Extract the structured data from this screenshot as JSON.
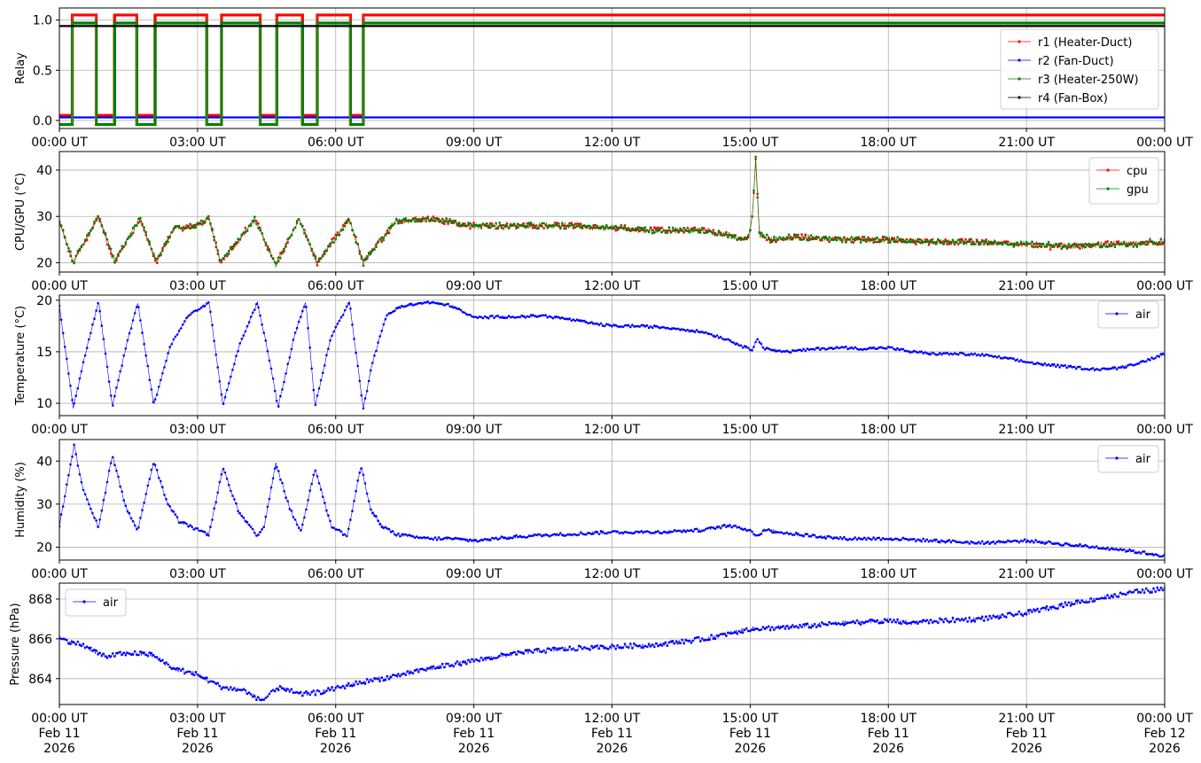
{
  "chart_data": [
    {
      "type": "line",
      "ylabel": "Relay",
      "ylim": [
        -0.08,
        1.12
      ],
      "yticks": [
        0.0,
        0.5,
        1.0
      ],
      "ytick_labels": [
        "0.0",
        "0.5",
        "1.0"
      ],
      "xlim": [
        "00:00 UT",
        "24:00 UT"
      ],
      "xtick_labels": [
        "00:00 UT",
        "03:00 UT",
        "06:00 UT",
        "09:00 UT",
        "12:00 UT",
        "15:00 UT",
        "18:00 UT",
        "21:00 UT",
        "00:00 UT"
      ],
      "grid": true,
      "legend": "top-right",
      "series": [
        {
          "name": "r1 (Heater-Duct)",
          "color": "#ff0000",
          "on_level": 1.05,
          "off_level": 0.05,
          "off_intervals_h": [
            [
              0.0,
              0.28
            ],
            [
              0.78,
              1.17
            ],
            [
              1.67,
              2.05
            ],
            [
              3.2,
              3.5
            ],
            [
              4.35,
              4.7
            ],
            [
              5.25,
              5.6
            ],
            [
              6.3,
              6.6
            ]
          ]
        },
        {
          "name": "r2 (Fan-Duct)",
          "color": "#0000ff",
          "constant": 0.03
        },
        {
          "name": "r3 (Heater-250W)",
          "color": "#008000",
          "on_level": 0.97,
          "off_level": -0.04,
          "off_intervals_h": [
            [
              0.0,
              0.28
            ],
            [
              0.78,
              1.17
            ],
            [
              1.67,
              2.05
            ],
            [
              3.2,
              3.5
            ],
            [
              4.35,
              4.7
            ],
            [
              5.25,
              5.6
            ],
            [
              6.3,
              6.6
            ]
          ]
        },
        {
          "name": "r4 (Fan-Box)",
          "color": "#000000",
          "constant": 0.94
        }
      ]
    },
    {
      "type": "line",
      "ylabel": "CPU/GPU (°C)",
      "ylim": [
        18,
        44
      ],
      "yticks": [
        20,
        30,
        40
      ],
      "ytick_labels": [
        "20",
        "30",
        "40"
      ],
      "xlim": [
        "00:00 UT",
        "24:00 UT"
      ],
      "xtick_labels": [
        "00:00 UT",
        "03:00 UT",
        "06:00 UT",
        "09:00 UT",
        "12:00 UT",
        "15:00 UT",
        "18:00 UT",
        "21:00 UT",
        "00:00 UT"
      ],
      "grid": true,
      "legend": "top-right",
      "series": [
        {
          "name": "cpu",
          "color": "#ff0000",
          "x_h": [
            0,
            0.3,
            0.85,
            1.2,
            1.75,
            2.1,
            2.5,
            3.0,
            3.25,
            3.5,
            4.25,
            4.7,
            5.2,
            5.6,
            6.3,
            6.6,
            7.3,
            8.0,
            9.0,
            10.0,
            11.0,
            12.0,
            13.0,
            14.0,
            14.5,
            14.95,
            15.05,
            15.12,
            15.2,
            15.5,
            16.0,
            17.0,
            18.0,
            19.0,
            20.0,
            21.0,
            22.0,
            23.0,
            24.0
          ],
          "y": [
            29,
            20,
            30,
            20,
            29.5,
            20,
            27.5,
            28,
            29.5,
            20,
            29.5,
            19.5,
            29.5,
            20,
            29.5,
            20,
            29,
            29.5,
            28,
            28,
            28,
            27.5,
            27,
            27,
            26,
            25,
            30,
            42.5,
            26,
            25,
            25.5,
            25,
            25,
            24.5,
            24.5,
            24,
            23.5,
            24,
            24.5
          ]
        },
        {
          "name": "gpu",
          "color": "#008000",
          "x_h": [
            0,
            0.3,
            0.85,
            1.2,
            1.75,
            2.1,
            2.5,
            3.0,
            3.25,
            3.5,
            4.25,
            4.7,
            5.2,
            5.6,
            6.3,
            6.6,
            7.3,
            8.0,
            9.0,
            10.0,
            11.0,
            12.0,
            13.0,
            14.0,
            14.5,
            14.95,
            15.05,
            15.12,
            15.2,
            15.5,
            16.0,
            17.0,
            18.0,
            19.0,
            20.0,
            21.0,
            22.0,
            23.0,
            24.0
          ],
          "y": [
            29,
            20,
            30,
            20.5,
            29.5,
            20.5,
            27.5,
            28,
            29.5,
            20,
            29.5,
            19.5,
            29.5,
            20,
            29.5,
            20,
            29,
            29.5,
            28,
            28,
            28,
            27.5,
            27,
            27,
            26,
            25,
            30,
            43,
            26,
            25,
            25.5,
            25,
            25,
            24.5,
            24.5,
            24,
            23.5,
            24,
            24.5
          ]
        }
      ]
    },
    {
      "type": "line",
      "ylabel": "Temperature (°C)",
      "ylim": [
        8.8,
        20.5
      ],
      "yticks": [
        10,
        15,
        20
      ],
      "ytick_labels": [
        "10",
        "15",
        "20"
      ],
      "xlim": [
        "00:00 UT",
        "24:00 UT"
      ],
      "xtick_labels": [
        "00:00 UT",
        "03:00 UT",
        "06:00 UT",
        "09:00 UT",
        "12:00 UT",
        "15:00 UT",
        "18:00 UT",
        "21:00 UT",
        "00:00 UT"
      ],
      "grid": true,
      "legend": "top-right",
      "series": [
        {
          "name": "air",
          "color": "#0000ff",
          "x_h": [
            0,
            0.3,
            0.55,
            0.85,
            1.15,
            1.45,
            1.7,
            2.05,
            2.4,
            2.8,
            3.25,
            3.55,
            3.9,
            4.3,
            4.55,
            4.75,
            5.1,
            5.35,
            5.55,
            5.9,
            6.3,
            6.6,
            6.8,
            7.1,
            7.4,
            8.0,
            8.5,
            9.0,
            9.5,
            10.0,
            10.5,
            11.0,
            11.5,
            12.0,
            12.5,
            13.0,
            13.5,
            14.0,
            14.5,
            14.9,
            15.05,
            15.15,
            15.3,
            15.8,
            16.5,
            17.0,
            17.5,
            18.0,
            18.5,
            19.0,
            19.5,
            20.0,
            20.5,
            21.0,
            21.5,
            22.0,
            22.5,
            23.0,
            23.5,
            24.0
          ],
          "y": [
            19.5,
            9.6,
            14.5,
            19.9,
            9.7,
            15.5,
            19.8,
            9.8,
            15.5,
            18.5,
            19.8,
            9.8,
            15.5,
            19.8,
            14.5,
            9.6,
            16.5,
            19.9,
            9.7,
            16.5,
            19.8,
            9.5,
            14.0,
            18.5,
            19.4,
            19.8,
            19.5,
            18.3,
            18.4,
            18.4,
            18.5,
            18.2,
            17.8,
            17.5,
            17.5,
            17.4,
            17.2,
            16.9,
            16.2,
            15.4,
            15.2,
            16.4,
            15.3,
            15.0,
            15.3,
            15.4,
            15.3,
            15.4,
            15.0,
            14.8,
            14.8,
            14.7,
            14.4,
            14.0,
            13.7,
            13.5,
            13.3,
            13.4,
            14.0,
            14.8
          ]
        }
      ]
    },
    {
      "type": "line",
      "ylabel": "Humidity (%)",
      "ylim": [
        17,
        45
      ],
      "yticks": [
        20,
        30,
        40
      ],
      "ytick_labels": [
        "20",
        "30",
        "40"
      ],
      "xlim": [
        "00:00 UT",
        "24:00 UT"
      ],
      "xtick_labels": [
        "00:00 UT",
        "03:00 UT",
        "06:00 UT",
        "09:00 UT",
        "12:00 UT",
        "15:00 UT",
        "18:00 UT",
        "21:00 UT",
        "00:00 UT"
      ],
      "grid": true,
      "legend": "top-right",
      "series": [
        {
          "name": "air",
          "color": "#0000ff",
          "x_h": [
            0,
            0.32,
            0.5,
            0.85,
            1.15,
            1.45,
            1.7,
            2.05,
            2.35,
            2.6,
            3.0,
            3.25,
            3.55,
            3.9,
            4.3,
            4.45,
            4.7,
            5.0,
            5.25,
            5.55,
            5.9,
            6.25,
            6.55,
            6.75,
            7.0,
            7.3,
            7.6,
            8.0,
            8.5,
            9.0,
            10.0,
            11.0,
            12.0,
            13.0,
            14.0,
            14.5,
            15.0,
            15.15,
            15.3,
            16.0,
            17.0,
            18.0,
            19.0,
            20.0,
            21.0,
            22.0,
            23.0,
            24.0
          ],
          "y": [
            25,
            43.5,
            34,
            24.5,
            41.5,
            29,
            24,
            40,
            30,
            26,
            24,
            23,
            38.5,
            28,
            22.5,
            25,
            39.5,
            29,
            23.5,
            38.5,
            25,
            22.5,
            39,
            29,
            25,
            23,
            22.5,
            22,
            22,
            21.5,
            22.5,
            23,
            23.5,
            23.5,
            24,
            25,
            24,
            22.5,
            24,
            23,
            22,
            22,
            21.5,
            21,
            21.5,
            20.5,
            19.5,
            18
          ]
        }
      ]
    },
    {
      "type": "line",
      "ylabel": "Pressure (hPa)",
      "ylim": [
        862.7,
        868.8
      ],
      "yticks": [
        864,
        866,
        868
      ],
      "ytick_labels": [
        "864",
        "866",
        "868"
      ],
      "xlim": [
        "00:00 UT",
        "24:00 UT"
      ],
      "xtick_labels": [
        [
          "00:00 UT",
          "Feb 11",
          "2026"
        ],
        [
          "03:00 UT",
          "Feb 11",
          "2026"
        ],
        [
          "06:00 UT",
          "Feb 11",
          "2026"
        ],
        [
          "09:00 UT",
          "Feb 11",
          "2026"
        ],
        [
          "12:00 UT",
          "Feb 11",
          "2026"
        ],
        [
          "15:00 UT",
          "Feb 11",
          "2026"
        ],
        [
          "18:00 UT",
          "Feb 11",
          "2026"
        ],
        [
          "21:00 UT",
          "Feb 11",
          "2026"
        ],
        [
          "00:00 UT",
          "Feb 12",
          "2026"
        ]
      ],
      "grid": true,
      "legend": "top-left",
      "series": [
        {
          "name": "air",
          "color": "#0000ff",
          "x_h": [
            0,
            0.5,
            1.0,
            1.5,
            2.0,
            2.5,
            3.0,
            3.5,
            4.0,
            4.4,
            4.8,
            5.2,
            5.6,
            6.0,
            6.5,
            7.0,
            8.0,
            9.0,
            10.0,
            11.0,
            12.0,
            13.0,
            14.0,
            15.0,
            16.0,
            17.0,
            18.0,
            18.5,
            19.0,
            20.0,
            21.0,
            22.0,
            23.0,
            23.5,
            24.0
          ],
          "y": [
            866.0,
            865.7,
            865.1,
            865.3,
            865.2,
            864.5,
            864.2,
            863.6,
            863.4,
            862.9,
            863.6,
            863.2,
            863.3,
            863.5,
            863.8,
            864.0,
            864.5,
            864.9,
            865.3,
            865.5,
            865.6,
            865.7,
            866.0,
            866.5,
            866.6,
            866.8,
            866.9,
            866.8,
            866.9,
            867.0,
            867.3,
            867.8,
            868.2,
            868.4,
            868.5
          ]
        }
      ]
    }
  ]
}
